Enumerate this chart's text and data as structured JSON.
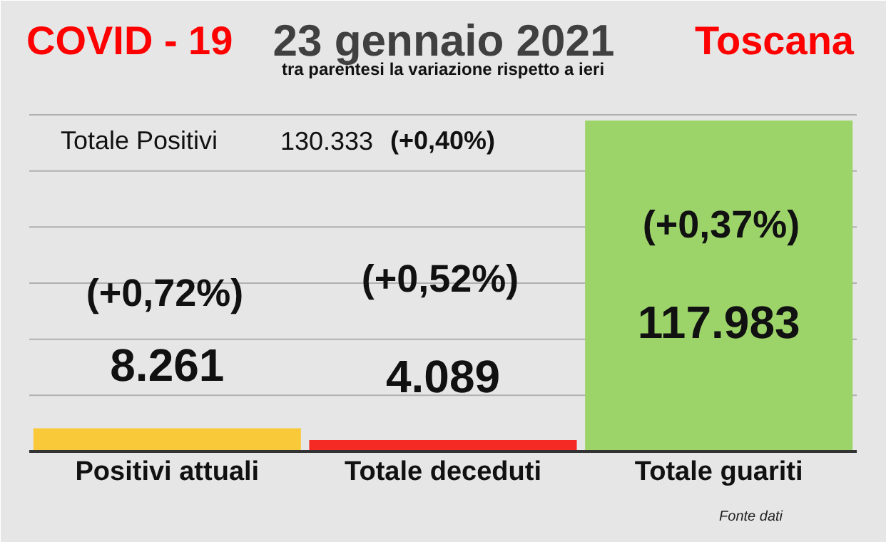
{
  "chart_data": {
    "type": "bar",
    "title": "23 gennaio 2021",
    "subtitle": "tra parentesi la variazione rispetto a ieri",
    "categories": [
      "Positivi attuali",
      "Totale deceduti",
      "Totale guariti"
    ],
    "values": [
      8261,
      4089,
      117983
    ],
    "colors": [
      "#f9c93a",
      "#f52a24",
      "#9dd46a"
    ],
    "value_labels": [
      "8.261",
      "4.089",
      "117.983"
    ],
    "ylim": [
      0,
      120000
    ],
    "yticks": [
      {
        "value": 0,
        "label": null
      },
      {
        "value": 20000,
        "label": null
      },
      {
        "value": 40000,
        "label": null
      },
      {
        "value": 60000,
        "label": null
      },
      {
        "value": 80000,
        "label": null
      },
      {
        "value": 100000,
        "label": null
      },
      {
        "value": 120000,
        "label": null
      }
    ],
    "grid": "y",
    "tick_labels": "x",
    "annotations": [
      "COVID - 19",
      "Toscana",
      "Totale Positivi",
      "130.333",
      "(+0,40%)",
      "(+0,72%)",
      "(+0,52%)",
      "(+0,37%)",
      "Fonte dati"
    ]
  }
}
